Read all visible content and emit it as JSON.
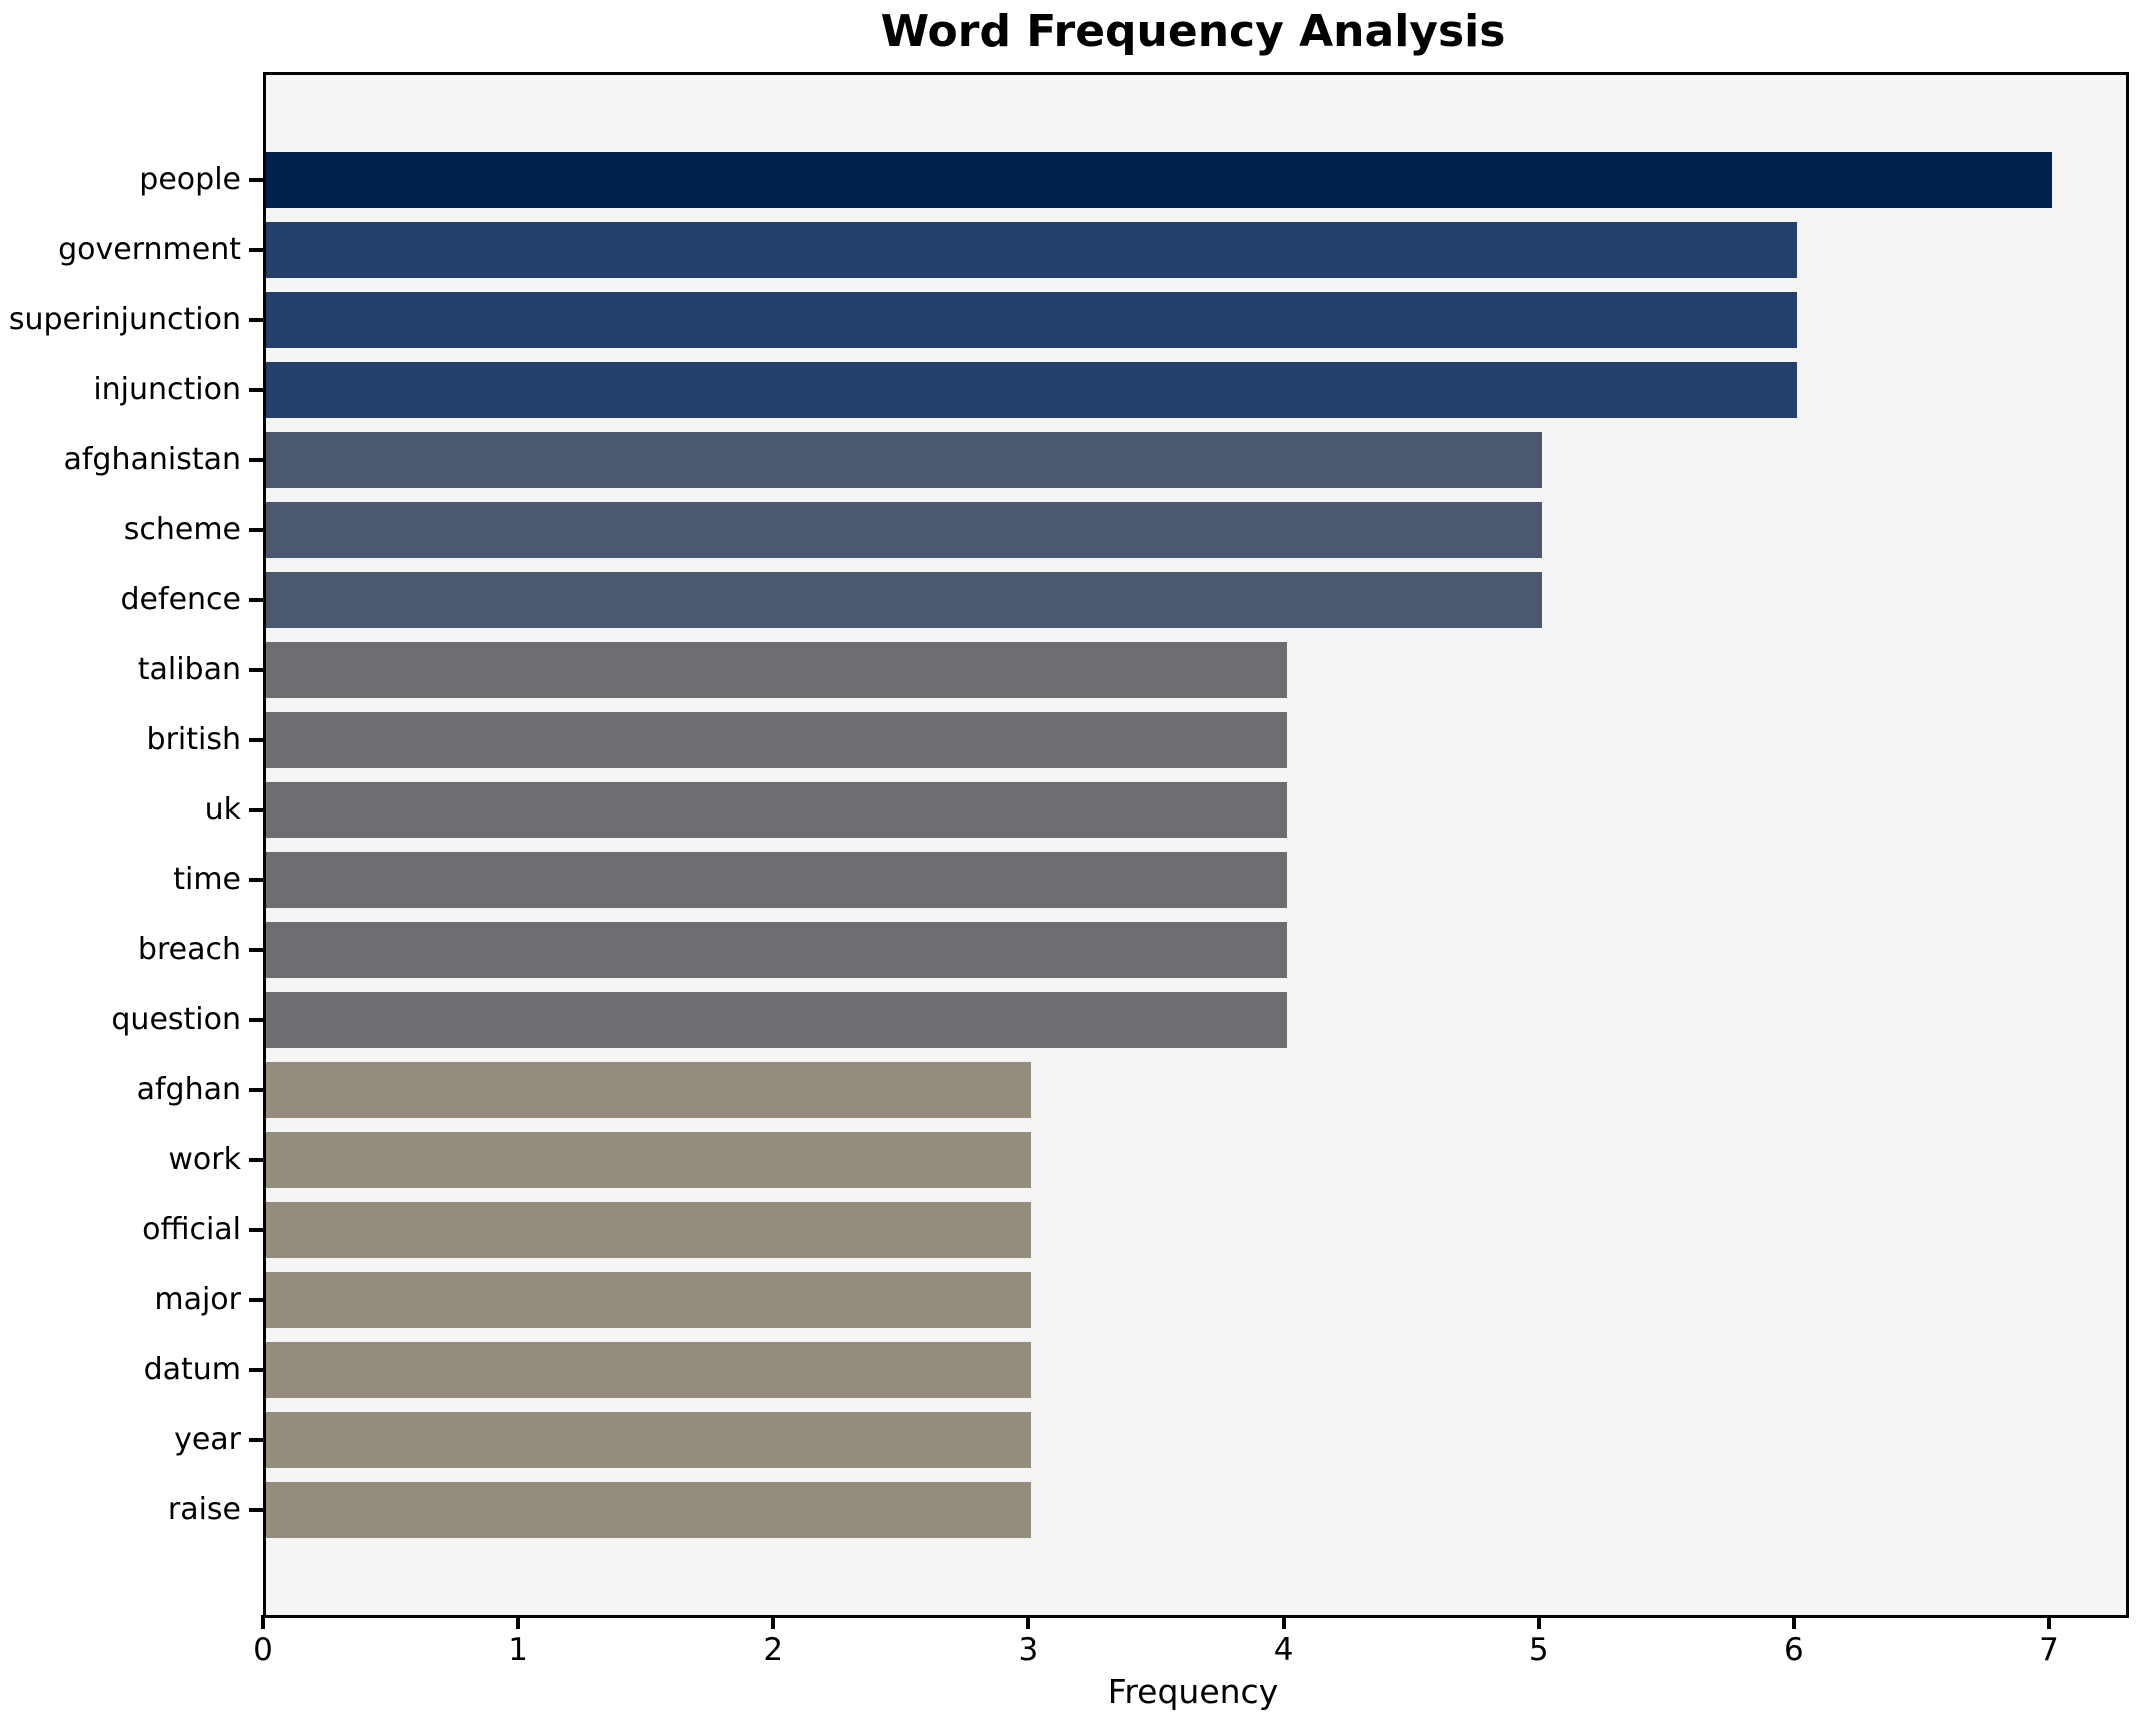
{
  "title": "Word Frequency Analysis",
  "chart_data": {
    "type": "bar",
    "orientation": "horizontal",
    "title": "Word Frequency Analysis",
    "xlabel": "Frequency",
    "ylabel": "",
    "categories": [
      "people",
      "government",
      "superinjunction",
      "injunction",
      "afghanistan",
      "scheme",
      "defence",
      "taliban",
      "british",
      "uk",
      "time",
      "breach",
      "question",
      "afghan",
      "work",
      "official",
      "major",
      "datum",
      "year",
      "raise"
    ],
    "values": [
      7,
      6,
      6,
      6,
      5,
      5,
      5,
      4,
      4,
      4,
      4,
      4,
      4,
      3,
      3,
      3,
      3,
      3,
      3,
      3
    ],
    "xticks": [
      0,
      1,
      2,
      3,
      4,
      5,
      6,
      7
    ],
    "xlim": [
      0,
      7.29
    ],
    "grid": false,
    "legend": null,
    "bar_colors_by_value": {
      "7": "#01224e",
      "6": "#233f6a",
      "5": "#4c5770",
      "4": "#6e6e72",
      "3": "#958d7b"
    },
    "plot_background": "#f5f5f6",
    "spine_color": "#000000"
  }
}
